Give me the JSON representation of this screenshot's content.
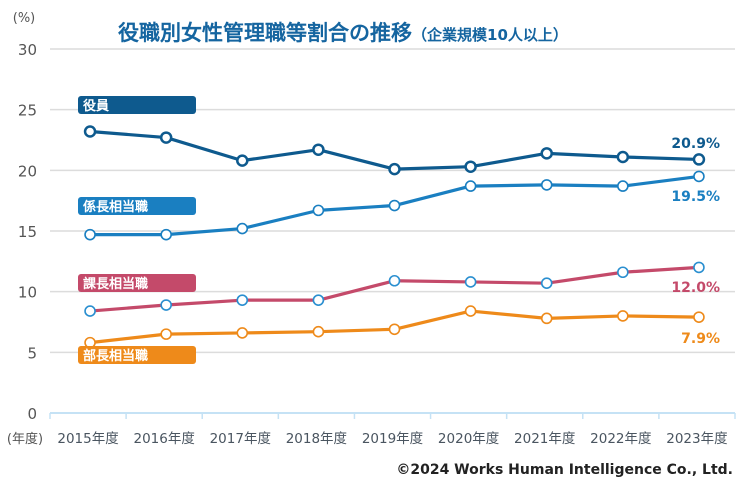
{
  "chart_data": {
    "type": "line",
    "title": "役職別女性管理職等割合の推移",
    "subtitle": "（企業規模10人以上）",
    "ylabel": "(%)",
    "xlabel": "(年度)",
    "ylim": [
      0,
      30
    ],
    "yticks": [
      0,
      5,
      10,
      15,
      20,
      25,
      30
    ],
    "grid": true,
    "categories": [
      "2015年度",
      "2016年度",
      "2017年度",
      "2018年度",
      "2019年度",
      "2020年度",
      "2021年度",
      "2022年度",
      "2023年度"
    ],
    "series": [
      {
        "name": "役員",
        "color": "#0e5a8e",
        "marker_stroke": "#0e5a8e",
        "end_label": "20.9%",
        "values": [
          23.2,
          22.7,
          20.8,
          21.7,
          20.1,
          20.3,
          21.4,
          21.1,
          20.9
        ]
      },
      {
        "name": "係長相当職",
        "color": "#1a7fc1",
        "marker_stroke": "#1a7fc1",
        "end_label": "19.5%",
        "values": [
          14.7,
          14.7,
          15.2,
          16.7,
          17.1,
          18.7,
          18.8,
          18.7,
          19.5
        ]
      },
      {
        "name": "課長相当職",
        "color": "#c44a6a",
        "marker_stroke": "#2a8fd0",
        "end_label": "12.0%",
        "values": [
          8.4,
          8.9,
          9.3,
          9.3,
          10.9,
          10.8,
          10.7,
          11.6,
          12.0
        ]
      },
      {
        "name": "部長相当職",
        "color": "#ee8a1a",
        "marker_stroke": "#ee8a1a",
        "end_label": "7.9%",
        "values": [
          5.8,
          6.5,
          6.6,
          6.7,
          6.9,
          8.4,
          7.8,
          8.0,
          7.9
        ]
      }
    ]
  },
  "copyright": "©2024 Works Human Intelligence Co., Ltd."
}
